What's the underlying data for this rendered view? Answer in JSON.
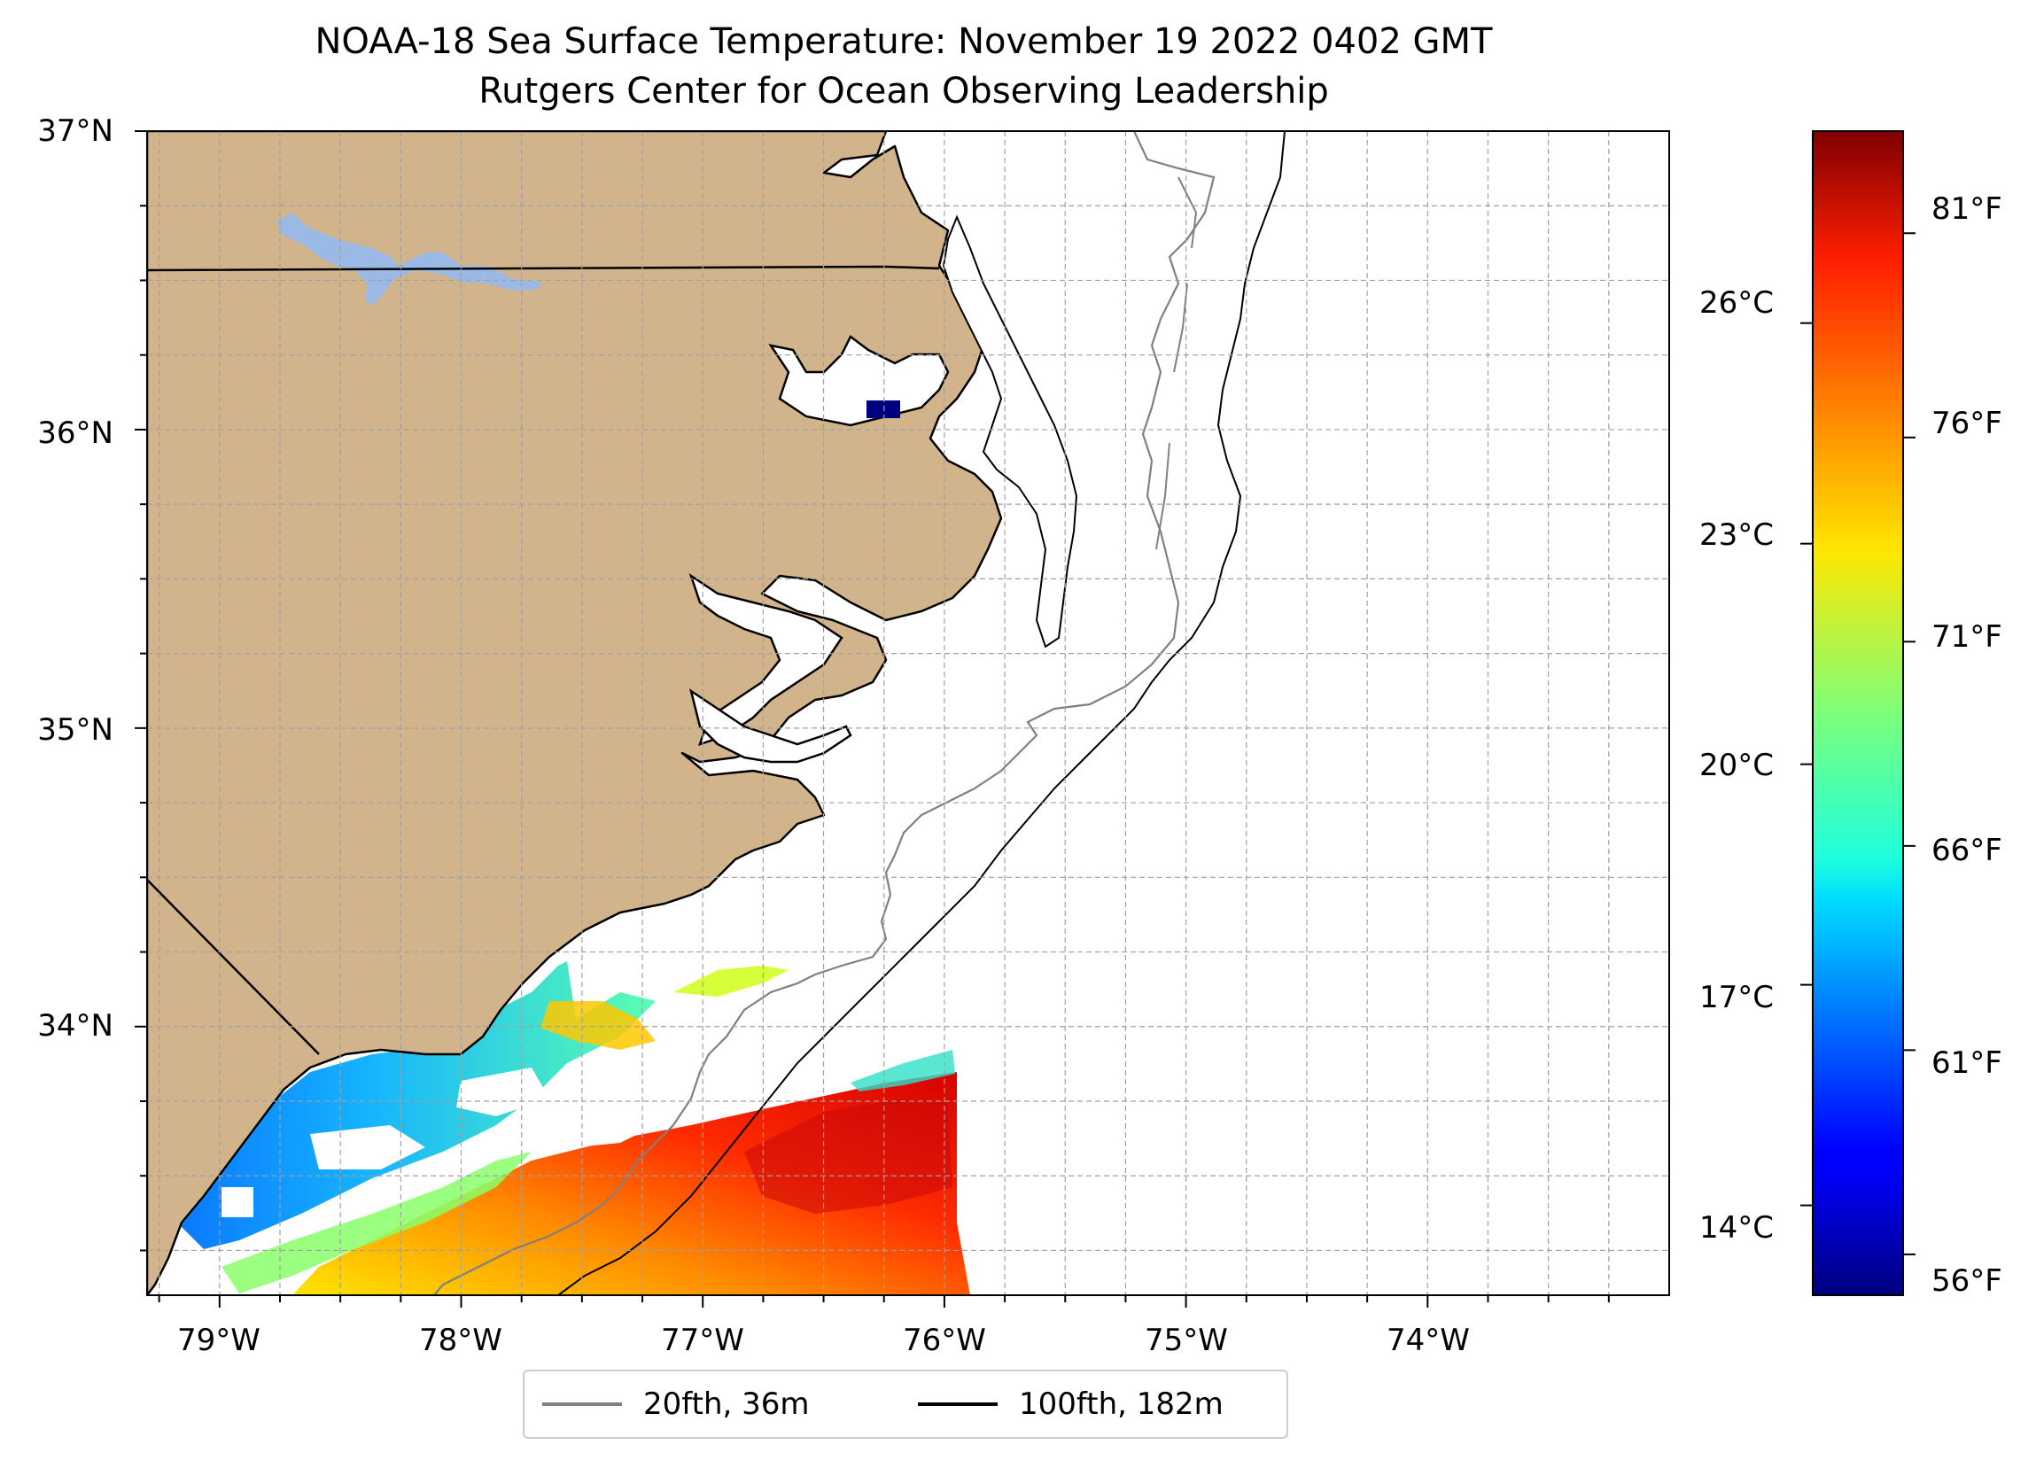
{
  "title": "NOAA-18 Sea Surface Temperature: November 19 2022 0402 GMT",
  "subtitle": "Rutgers Center for Ocean Observing Leadership",
  "map": {
    "extent": {
      "lon": [
        -79.3,
        -73.0
      ],
      "lat": [
        33.1,
        37.0
      ]
    },
    "gridlines": true,
    "land_color": "#d2b48c",
    "lake_color": "#9ab9e4",
    "ocean_color": "#ffffff",
    "lat_ticks": [
      {
        "value": 37,
        "label": "37°N"
      },
      {
        "value": 36,
        "label": "36°N"
      },
      {
        "value": 35,
        "label": "35°N"
      },
      {
        "value": 34,
        "label": "34°N"
      }
    ],
    "lon_ticks": [
      {
        "value": -79,
        "label": "79°W"
      },
      {
        "value": -78,
        "label": "78°W"
      },
      {
        "value": -77,
        "label": "77°W"
      },
      {
        "value": -76,
        "label": "76°W"
      },
      {
        "value": -75,
        "label": "75°W"
      },
      {
        "value": -74,
        "label": "74°W"
      }
    ]
  },
  "colorbar": {
    "colormap": "jet",
    "range_f": [
      55,
      83.5
    ],
    "fahrenheit_ticks": [
      {
        "value": 56,
        "label": "56°F"
      },
      {
        "value": 61,
        "label": "61°F"
      },
      {
        "value": 66,
        "label": "66°F"
      },
      {
        "value": 71,
        "label": "71°F"
      },
      {
        "value": 76,
        "label": "76°F"
      },
      {
        "value": 81,
        "label": "81°F"
      }
    ],
    "celsius_ticks": [
      {
        "value": 14,
        "label": "14°C"
      },
      {
        "value": 17,
        "label": "17°C"
      },
      {
        "value": 20,
        "label": "20°C"
      },
      {
        "value": 23,
        "label": "23°C"
      },
      {
        "value": 26,
        "label": "26°C"
      }
    ]
  },
  "legend": {
    "placement": "bottom-center",
    "items": [
      {
        "label": "20fth, 36m",
        "color": "#808080"
      },
      {
        "label": "100fth, 182m",
        "color": "#000000"
      }
    ]
  }
}
